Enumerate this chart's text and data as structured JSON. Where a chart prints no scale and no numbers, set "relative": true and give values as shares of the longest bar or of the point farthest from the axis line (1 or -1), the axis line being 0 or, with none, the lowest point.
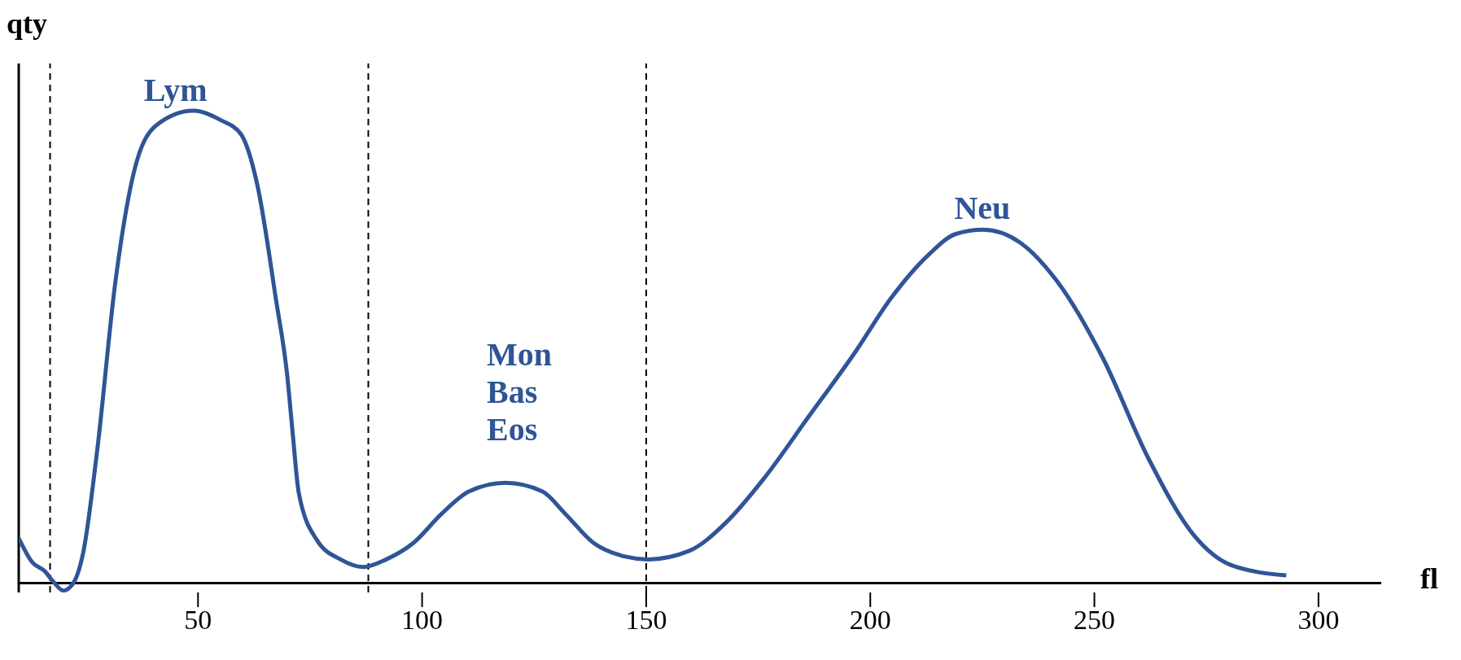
{
  "chart_data": {
    "type": "line",
    "relative": true,
    "xlabel": "fl",
    "ylabel": "qty",
    "xlim": [
      10,
      314
    ],
    "xticks": [
      50,
      100,
      150,
      200,
      250,
      300
    ],
    "x": [
      10.0,
      13.1,
      15.8,
      17.8,
      19.9,
      21.9,
      24.4,
      27.5,
      31.6,
      35.7,
      40.8,
      49.0,
      55.1,
      59.6,
      63.3,
      67.4,
      69.9,
      71.1,
      72.5,
      76.6,
      81.8,
      86.9,
      92.0,
      98.2,
      104.3,
      110.5,
      118.6,
      126.8,
      132.0,
      138.1,
      145.3,
      150.4,
      159.6,
      167.8,
      176.0,
      186.3,
      196.5,
      204.7,
      212.9,
      219.1,
      225.2,
      233.4,
      241.6,
      251.8,
      262.1,
      272.3,
      280.5,
      292.8
    ],
    "series": [
      {
        "color": "#2f5597",
        "values": [
          0.095,
          0.043,
          0.025,
          0.002,
          -0.016,
          -0.004,
          0.065,
          0.28,
          0.64,
          0.87,
          0.97,
          1.0,
          0.98,
          0.95,
          0.84,
          0.6,
          0.44,
          0.32,
          0.19,
          0.09,
          0.05,
          0.034,
          0.05,
          0.086,
          0.146,
          0.194,
          0.212,
          0.194,
          0.146,
          0.086,
          0.056,
          0.05,
          0.068,
          0.128,
          0.218,
          0.353,
          0.487,
          0.604,
          0.694,
          0.739,
          0.748,
          0.721,
          0.64,
          0.478,
          0.263,
          0.1,
          0.038,
          0.016
        ]
      }
    ],
    "ref_lines": [
      {
        "axis": "x",
        "value": 17,
        "color": "#000000",
        "line_style": "dashed"
      },
      {
        "axis": "x",
        "value": 88,
        "color": "#000000",
        "line_style": "dashed"
      },
      {
        "axis": "x",
        "value": 150,
        "color": "#000000",
        "line_style": "dashed"
      }
    ],
    "annotations": [
      {
        "text": "Lym",
        "x": 45,
        "y": 1.0
      },
      "Mon",
      "Bas",
      "Eos",
      {
        "text": "Neu",
        "x": 225,
        "y": 0.75
      }
    ],
    "grid": false,
    "legend": false,
    "marker": "none",
    "line_style": "solid"
  }
}
